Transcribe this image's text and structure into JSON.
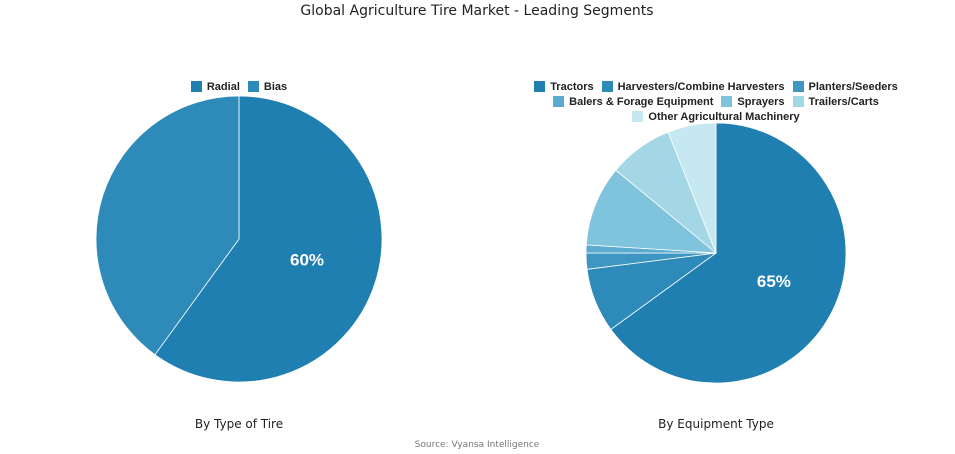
{
  "title": "Global Agriculture Tire Market - Leading Segments",
  "source": "Source: Vyansa Intelligence",
  "chart_data": [
    {
      "type": "pie",
      "title": "By Type of Tire",
      "categories": [
        "Radial",
        "Bias"
      ],
      "values": [
        60,
        40
      ],
      "value_labels": [
        "60%",
        null
      ],
      "colors": [
        "#1f7fb0",
        "#2e8bb9"
      ]
    },
    {
      "type": "pie",
      "title": "By Equipment Type",
      "categories": [
        "Tractors",
        "Harvesters/Combine Harvesters",
        "Planters/Seeders",
        "Balers & Forage Equipment",
        "Sprayers",
        "Trailers/Carts",
        "Other Agricultural Machinery"
      ],
      "values": [
        65,
        8,
        2,
        1,
        10,
        8,
        6
      ],
      "value_labels": [
        "65%",
        null,
        null,
        null,
        null,
        null,
        null
      ],
      "colors": [
        "#1f7fb0",
        "#2e8bb9",
        "#3d97c2",
        "#5aabcf",
        "#7fc3dc",
        "#a3d7e6",
        "#c6e8f0"
      ]
    }
  ]
}
